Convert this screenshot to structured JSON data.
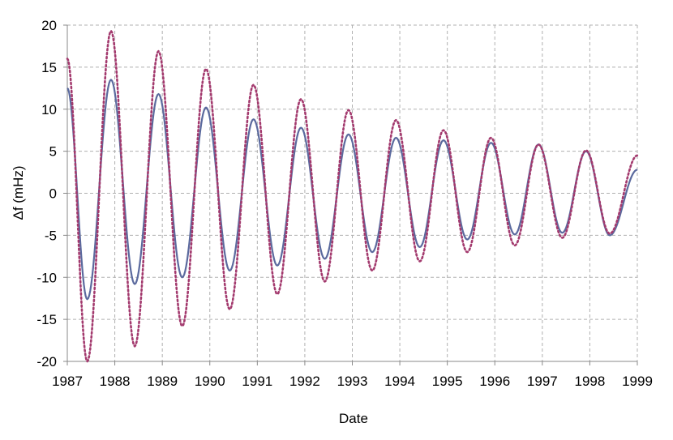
{
  "chart_data": {
    "type": "line",
    "title": "",
    "xlabel": "Date",
    "ylabel": "Δf (mHz)",
    "xlim": [
      1987,
      1999
    ],
    "ylim": [
      -20,
      20
    ],
    "x_ticks": [
      "1987",
      "1988",
      "1989",
      "1990",
      "1991",
      "1992",
      "1993",
      "1994",
      "1995",
      "1996",
      "1997",
      "1998",
      "1999"
    ],
    "y_ticks": [
      "20",
      "15",
      "10",
      "5",
      "0",
      "-5",
      "-10",
      "-15",
      "-20"
    ],
    "grid": true,
    "legend": "none",
    "series": [
      {
        "style": "solid",
        "color": "#5b6a9e",
        "x": [
          1987.0,
          1987.42,
          1987.92,
          1988.42,
          1988.92,
          1989.42,
          1989.92,
          1990.42,
          1990.92,
          1991.42,
          1991.92,
          1992.42,
          1992.92,
          1993.42,
          1993.92,
          1994.42,
          1994.92,
          1995.42,
          1995.92,
          1996.42,
          1996.92,
          1997.42,
          1997.92,
          1998.42,
          1999.0
        ],
        "y": [
          12.5,
          -12.6,
          13.5,
          -10.8,
          11.8,
          -10.0,
          10.2,
          -9.2,
          8.8,
          -8.6,
          7.8,
          -7.8,
          7.0,
          -7.0,
          6.6,
          -6.4,
          6.3,
          -5.5,
          6.0,
          -4.9,
          5.8,
          -4.7,
          5.0,
          -5.0,
          2.8
        ]
      },
      {
        "style": "dotted",
        "color": "#a33a6e",
        "x": [
          1987.0,
          1987.42,
          1987.92,
          1988.42,
          1988.92,
          1989.42,
          1989.92,
          1990.42,
          1990.92,
          1991.42,
          1991.92,
          1992.42,
          1992.92,
          1993.42,
          1993.92,
          1994.42,
          1994.92,
          1995.42,
          1995.92,
          1996.42,
          1996.92,
          1997.42,
          1997.92,
          1998.42,
          1999.0
        ],
        "y": [
          16.0,
          -20.0,
          19.3,
          -18.2,
          16.9,
          -15.8,
          14.8,
          -13.8,
          12.9,
          -12.0,
          11.2,
          -10.5,
          9.9,
          -9.2,
          8.7,
          -8.1,
          7.5,
          -7.0,
          6.6,
          -6.2,
          5.8,
          -5.3,
          5.1,
          -4.8,
          4.5
        ]
      }
    ]
  }
}
